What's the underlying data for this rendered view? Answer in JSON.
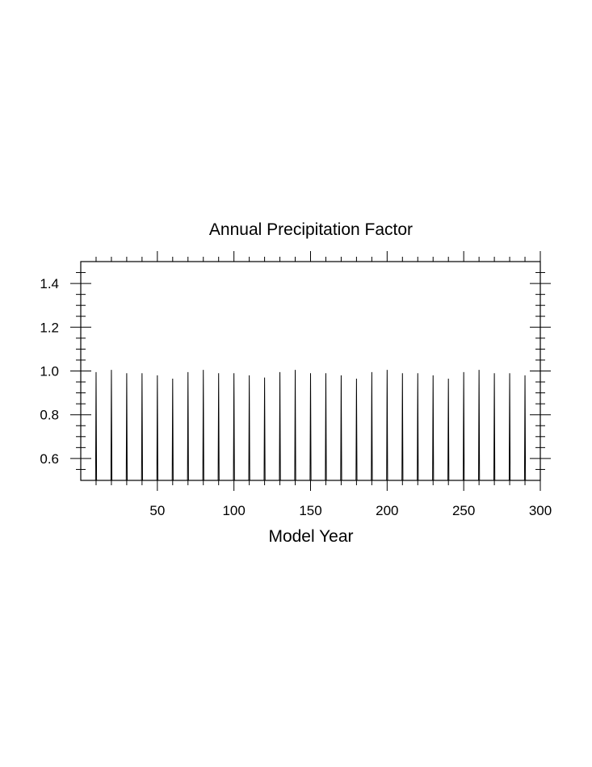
{
  "chart_data": {
    "type": "line",
    "title": "Annual Precipitation Factor",
    "xlabel": "Model Year",
    "ylabel": "",
    "xlim": [
      0,
      300
    ],
    "ylim": [
      0.5,
      1.5
    ],
    "x_ticks": [
      50,
      100,
      150,
      200,
      250,
      300
    ],
    "x_tick_labels": [
      "50",
      "100",
      "150",
      "200",
      "250",
      "300"
    ],
    "y_ticks": [
      0.6,
      0.8,
      1.0,
      1.2,
      1.4
    ],
    "y_tick_labels": [
      "0.6",
      "0.8",
      "1.0",
      "1.2",
      "1.4"
    ],
    "grid": false,
    "legend": "none",
    "series": [
      {
        "color": "#000000",
        "x": [
          10,
          20,
          30,
          40,
          50,
          60,
          70,
          80,
          90,
          100,
          110,
          120,
          130,
          140,
          150,
          160,
          170,
          180,
          190,
          200,
          210,
          220,
          230,
          240,
          250,
          260,
          270,
          280,
          290
        ],
        "baseline": 0.5,
        "values": [
          0.995,
          1.005,
          0.99,
          0.99,
          0.98,
          0.965,
          0.995,
          1.005,
          0.99,
          0.99,
          0.98,
          0.97,
          0.995,
          1.005,
          0.99,
          0.99,
          0.98,
          0.965,
          0.995,
          1.005,
          0.99,
          0.99,
          0.98,
          0.965,
          0.995,
          1.005,
          0.99,
          0.99,
          0.98
        ]
      }
    ]
  }
}
